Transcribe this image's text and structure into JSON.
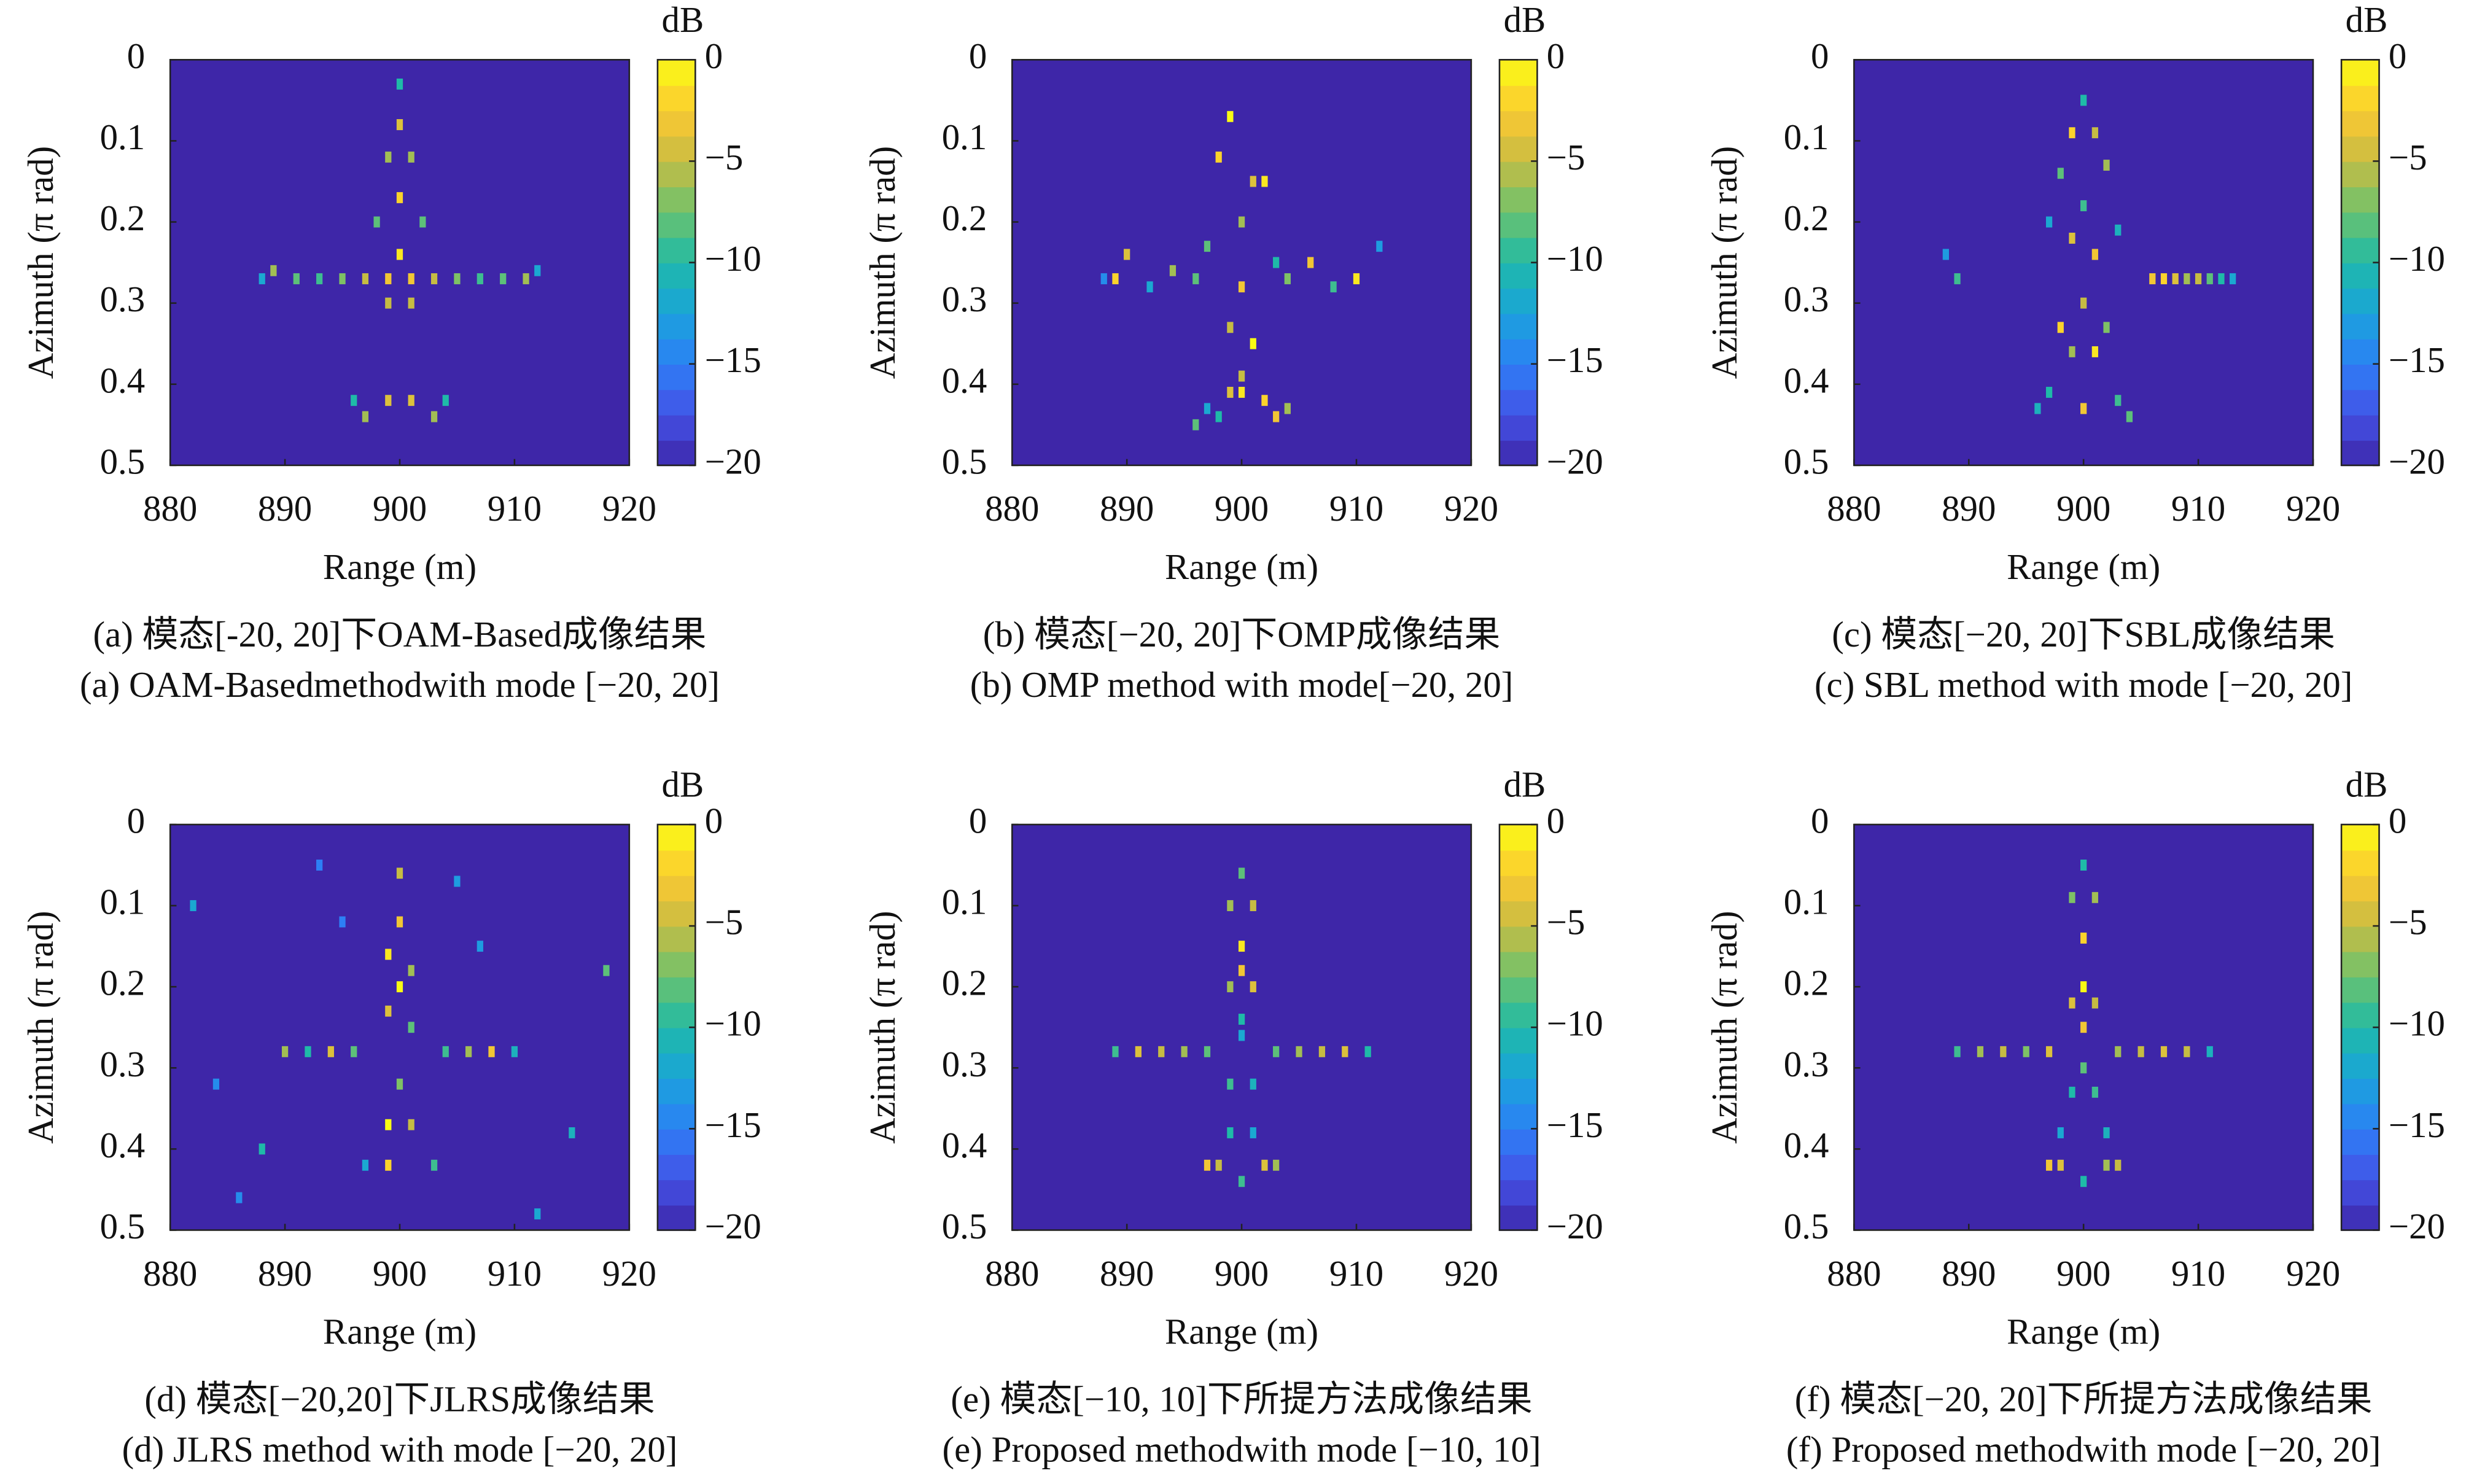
{
  "chart_data": [
    {
      "type": "heatmap",
      "xlabel": "Range (m)",
      "ylabel": "Azimuth (π rad)",
      "colorbar_label": "dB",
      "caption_cn": "(a) 模态[-20, 20]下OAM-Based成像结果",
      "caption_en": "(a) OAM-Basedmethodwith mode [−20, 20]",
      "xlim": [
        880,
        920
      ],
      "ylim": [
        0.5,
        0
      ],
      "xticks": [
        880,
        890,
        900,
        910,
        920
      ],
      "yticks": [
        0,
        0.1,
        0.2,
        0.3,
        0.4,
        0.5
      ],
      "clim": [
        -20,
        0
      ],
      "cticks": [
        {
          "value": 0,
          "label": "0"
        },
        {
          "value": -5,
          "label": "−5"
        },
        {
          "value": -10,
          "label": "−10"
        },
        {
          "value": -15,
          "label": "−15"
        },
        {
          "value": -20,
          "label": "−20"
        }
      ],
      "colormap": [
        "#3e26a8",
        "#4352e6",
        "#2d7ff6",
        "#1aa3db",
        "#1fbaa8",
        "#6cc26d",
        "#c6bc43",
        "#fcc932",
        "#f9fb15"
      ],
      "x": [
        900,
        900,
        899,
        901,
        900,
        898,
        902,
        900,
        899,
        901,
        888,
        889,
        891,
        893,
        895,
        897,
        899,
        901,
        903,
        905,
        907,
        909,
        911,
        912,
        896,
        897,
        899,
        901,
        903,
        904
      ],
      "y": [
        0.03,
        0.08,
        0.12,
        0.12,
        0.17,
        0.2,
        0.2,
        0.24,
        0.3,
        0.3,
        0.27,
        0.26,
        0.27,
        0.27,
        0.27,
        0.27,
        0.27,
        0.27,
        0.27,
        0.27,
        0.27,
        0.27,
        0.27,
        0.26,
        0.42,
        0.44,
        0.42,
        0.42,
        0.44,
        0.42
      ],
      "values": [
        -10,
        -4,
        -6,
        -6,
        -2,
        -8,
        -8,
        -1,
        -5,
        -5,
        -12,
        -6,
        -8,
        -9,
        -7,
        -5,
        -3,
        -3,
        -5,
        -7,
        -9,
        -8,
        -6,
        -12,
        -10,
        -6,
        -4,
        -4,
        -6,
        -10
      ]
    },
    {
      "type": "heatmap",
      "xlabel": "Range (m)",
      "ylabel": "Azimuth (π rad)",
      "colorbar_label": "dB",
      "caption_cn": "(b) 模态[−20, 20]下OMP成像结果",
      "caption_en": "(b) OMP method with mode[−20, 20]",
      "xlim": [
        880,
        920
      ],
      "ylim": [
        0.5,
        0
      ],
      "xticks": [
        880,
        890,
        900,
        910,
        920
      ],
      "yticks": [
        0,
        0.1,
        0.2,
        0.3,
        0.4,
        0.5
      ],
      "clim": [
        -20,
        0
      ],
      "cticks": [
        {
          "value": 0,
          "label": "0"
        },
        {
          "value": -5,
          "label": "−5"
        },
        {
          "value": -10,
          "label": "−10"
        },
        {
          "value": -15,
          "label": "−15"
        },
        {
          "value": -20,
          "label": "−20"
        }
      ],
      "colormap": [
        "#3e26a8",
        "#4352e6",
        "#2d7ff6",
        "#1aa3db",
        "#1fbaa8",
        "#6cc26d",
        "#c6bc43",
        "#fcc932",
        "#f9fb15"
      ],
      "x": [
        899,
        898,
        901,
        902,
        900,
        897,
        903,
        900,
        899,
        901,
        889,
        890,
        892,
        894,
        896,
        904,
        906,
        908,
        910,
        912,
        900,
        899,
        902,
        898,
        897,
        903,
        896,
        904,
        900,
        888
      ],
      "y": [
        0.07,
        0.12,
        0.15,
        0.15,
        0.2,
        0.23,
        0.25,
        0.28,
        0.33,
        0.35,
        0.27,
        0.24,
        0.28,
        0.26,
        0.27,
        0.27,
        0.25,
        0.28,
        0.27,
        0.23,
        0.39,
        0.41,
        0.42,
        0.44,
        0.43,
        0.44,
        0.45,
        0.43,
        0.41,
        0.27
      ],
      "values": [
        0,
        -2,
        -4,
        -1,
        -6,
        -8,
        -10,
        -3,
        -5,
        0,
        -2,
        -4,
        -12,
        -6,
        -8,
        -7,
        -3,
        -9,
        -1,
        -13,
        -5,
        -4,
        -2,
        -10,
        -12,
        -3,
        -8,
        -6,
        -1,
        -14
      ]
    },
    {
      "type": "heatmap",
      "xlabel": "Range (m)",
      "ylabel": "Azimuth (π rad)",
      "colorbar_label": "dB",
      "caption_cn": "(c) 模态[−20, 20]下SBL成像结果",
      "caption_en": "(c) SBL method with mode [−20, 20]",
      "xlim": [
        880,
        920
      ],
      "ylim": [
        0.5,
        0
      ],
      "xticks": [
        880,
        890,
        900,
        910,
        920
      ],
      "yticks": [
        0,
        0.1,
        0.2,
        0.3,
        0.4,
        0.5
      ],
      "clim": [
        -20,
        0
      ],
      "cticks": [
        {
          "value": 0,
          "label": "0"
        },
        {
          "value": -5,
          "label": "−5"
        },
        {
          "value": -10,
          "label": "−10"
        },
        {
          "value": -15,
          "label": "−15"
        },
        {
          "value": -20,
          "label": "−20"
        }
      ],
      "colormap": [
        "#3e26a8",
        "#4352e6",
        "#2d7ff6",
        "#1aa3db",
        "#1fbaa8",
        "#6cc26d",
        "#c6bc43",
        "#fcc932",
        "#f9fb15"
      ],
      "x": [
        900,
        899,
        901,
        898,
        902,
        900,
        899,
        901,
        897,
        903,
        888,
        889,
        906,
        907,
        908,
        909,
        910,
        911,
        912,
        913,
        898,
        899,
        901,
        902,
        897,
        903,
        900,
        896,
        904,
        900
      ],
      "y": [
        0.05,
        0.09,
        0.09,
        0.14,
        0.13,
        0.18,
        0.22,
        0.24,
        0.2,
        0.21,
        0.24,
        0.27,
        0.27,
        0.27,
        0.27,
        0.27,
        0.27,
        0.27,
        0.27,
        0.27,
        0.33,
        0.36,
        0.36,
        0.33,
        0.41,
        0.42,
        0.43,
        0.43,
        0.44,
        0.3
      ],
      "values": [
        -10,
        -2,
        -5,
        -8,
        -6,
        -9,
        -4,
        -3,
        -12,
        -11,
        -13,
        -9,
        -3,
        -2,
        -4,
        -6,
        -5,
        -8,
        -10,
        -12,
        -2,
        -6,
        -1,
        -7,
        -10,
        -9,
        -3,
        -11,
        -8,
        -5
      ]
    },
    {
      "type": "heatmap",
      "xlabel": "Range (m)",
      "ylabel": "Azimuth (π rad)",
      "colorbar_label": "dB",
      "caption_cn": "(d) 模态[−20,20]下JLRS成像结果",
      "caption_en": "(d) JLRS method with mode [−20, 20]",
      "xlim": [
        880,
        920
      ],
      "ylim": [
        0.5,
        0
      ],
      "xticks": [
        880,
        890,
        900,
        910,
        920
      ],
      "yticks": [
        0,
        0.1,
        0.2,
        0.3,
        0.4,
        0.5
      ],
      "clim": [
        -20,
        0
      ],
      "cticks": [
        {
          "value": 0,
          "label": "0"
        },
        {
          "value": -5,
          "label": "−5"
        },
        {
          "value": -10,
          "label": "−10"
        },
        {
          "value": -15,
          "label": "−15"
        },
        {
          "value": -20,
          "label": "−20"
        }
      ],
      "colormap": [
        "#3e26a8",
        "#4352e6",
        "#2d7ff6",
        "#1aa3db",
        "#1fbaa8",
        "#6cc26d",
        "#c6bc43",
        "#fcc932",
        "#f9fb15"
      ],
      "x": [
        900,
        900,
        899,
        901,
        900,
        899,
        901,
        890,
        892,
        894,
        896,
        904,
        906,
        908,
        910,
        900,
        899,
        901,
        897,
        903,
        899,
        882,
        886,
        893,
        907,
        915,
        918,
        884,
        912,
        895,
        905,
        888
      ],
      "y": [
        0.06,
        0.12,
        0.16,
        0.18,
        0.2,
        0.23,
        0.25,
        0.28,
        0.28,
        0.28,
        0.28,
        0.28,
        0.28,
        0.28,
        0.28,
        0.32,
        0.37,
        0.37,
        0.42,
        0.42,
        0.42,
        0.1,
        0.46,
        0.05,
        0.15,
        0.38,
        0.18,
        0.32,
        0.48,
        0.12,
        0.07,
        0.4
      ],
      "values": [
        -5,
        -3,
        -1,
        -6,
        0,
        -4,
        -8,
        -6,
        -10,
        -4,
        -8,
        -9,
        -6,
        -3,
        -11,
        -7,
        0,
        -5,
        -12,
        -9,
        -2,
        -12,
        -14,
        -15,
        -13,
        -11,
        -8,
        -14,
        -12,
        -15,
        -13,
        -10
      ]
    },
    {
      "type": "heatmap",
      "xlabel": "Range (m)",
      "ylabel": "Azimuth (π rad)",
      "colorbar_label": "dB",
      "caption_cn": "(e) 模态[−10, 10]下所提方法成像结果",
      "caption_en": "(e) Proposed methodwith mode [−10, 10]",
      "xlim": [
        880,
        920
      ],
      "ylim": [
        0.5,
        0
      ],
      "xticks": [
        880,
        890,
        900,
        910,
        920
      ],
      "yticks": [
        0,
        0.1,
        0.2,
        0.3,
        0.4,
        0.5
      ],
      "clim": [
        -20,
        0
      ],
      "cticks": [
        {
          "value": 0,
          "label": "0"
        },
        {
          "value": -5,
          "label": "−5"
        },
        {
          "value": -10,
          "label": "−10"
        },
        {
          "value": -15,
          "label": "−15"
        },
        {
          "value": -20,
          "label": "−20"
        }
      ],
      "colormap": [
        "#3e26a8",
        "#4352e6",
        "#2d7ff6",
        "#1aa3db",
        "#1fbaa8",
        "#6cc26d",
        "#c6bc43",
        "#fcc932",
        "#f9fb15"
      ],
      "x": [
        900,
        899,
        901,
        900,
        900,
        899,
        901,
        900,
        889,
        891,
        893,
        895,
        897,
        903,
        905,
        907,
        909,
        911,
        900,
        899,
        901,
        897,
        898,
        902,
        903,
        900,
        899,
        901
      ],
      "y": [
        0.06,
        0.1,
        0.1,
        0.15,
        0.18,
        0.2,
        0.2,
        0.24,
        0.28,
        0.28,
        0.28,
        0.28,
        0.28,
        0.28,
        0.28,
        0.28,
        0.28,
        0.28,
        0.26,
        0.32,
        0.32,
        0.42,
        0.42,
        0.42,
        0.42,
        0.44,
        0.38,
        0.38
      ],
      "values": [
        -8,
        -6,
        -5,
        -1,
        -3,
        -6,
        -4,
        -10,
        -9,
        -4,
        -5,
        -6,
        -8,
        -8,
        -6,
        -5,
        -4,
        -10,
        -12,
        -9,
        -11,
        -3,
        -5,
        -4,
        -6,
        -9,
        -10,
        -12
      ]
    },
    {
      "type": "heatmap",
      "xlabel": "Range (m)",
      "ylabel": "Azimuth (π rad)",
      "colorbar_label": "dB",
      "caption_cn": "(f) 模态[−20, 20]下所提方法成像结果",
      "caption_en": "(f) Proposed methodwith mode [−20, 20]",
      "xlim": [
        880,
        920
      ],
      "ylim": [
        0.5,
        0
      ],
      "xticks": [
        880,
        890,
        900,
        910,
        920
      ],
      "yticks": [
        0,
        0.1,
        0.2,
        0.3,
        0.4,
        0.5
      ],
      "clim": [
        -20,
        0
      ],
      "cticks": [
        {
          "value": 0,
          "label": "0"
        },
        {
          "value": -5,
          "label": "−5"
        },
        {
          "value": -10,
          "label": "−10"
        },
        {
          "value": -15,
          "label": "−15"
        },
        {
          "value": -20,
          "label": "−20"
        }
      ],
      "colormap": [
        "#3e26a8",
        "#4352e6",
        "#2d7ff6",
        "#1aa3db",
        "#1fbaa8",
        "#6cc26d",
        "#c6bc43",
        "#fcc932",
        "#f9fb15"
      ],
      "x": [
        900,
        899,
        901,
        900,
        900,
        899,
        901,
        900,
        889,
        891,
        893,
        895,
        897,
        903,
        905,
        907,
        909,
        911,
        900,
        899,
        901,
        897,
        898,
        902,
        903,
        900,
        898,
        902
      ],
      "y": [
        0.05,
        0.09,
        0.09,
        0.14,
        0.2,
        0.22,
        0.22,
        0.25,
        0.28,
        0.28,
        0.28,
        0.28,
        0.28,
        0.28,
        0.28,
        0.28,
        0.28,
        0.28,
        0.3,
        0.33,
        0.33,
        0.42,
        0.42,
        0.42,
        0.42,
        0.44,
        0.38,
        0.38
      ],
      "values": [
        -10,
        -7,
        -6,
        -2,
        0,
        -4,
        -5,
        -3,
        -9,
        -6,
        -5,
        -7,
        -4,
        -6,
        -5,
        -4,
        -5,
        -11,
        -8,
        -10,
        -9,
        -3,
        -4,
        -6,
        -5,
        -10,
        -12,
        -11
      ]
    }
  ]
}
